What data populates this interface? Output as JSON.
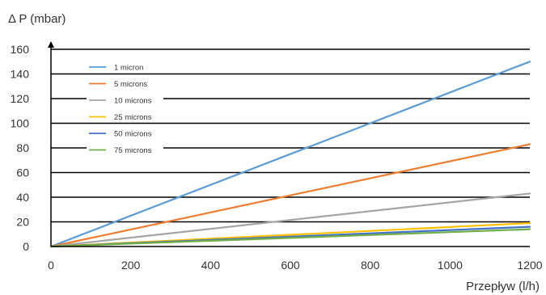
{
  "chart_data": {
    "type": "line",
    "title": "",
    "ylabel": "Δ P (mbar)",
    "xlabel": "Przepływ (l/h)",
    "xlim": [
      0,
      1200
    ],
    "ylim": [
      0,
      160
    ],
    "xticks": [
      "0",
      "200",
      "400",
      "600",
      "800",
      "1000",
      "1200"
    ],
    "yticks": [
      "0",
      "20",
      "40",
      "60",
      "80",
      "100",
      "120",
      "140",
      "160"
    ],
    "grid": "horizontal",
    "legend_position": "top-left",
    "series": [
      {
        "name": "1 micron",
        "color": "#5b9bd5",
        "x": [
          0,
          1200
        ],
        "y": [
          0,
          150
        ]
      },
      {
        "name": "5 microns",
        "color": "#ed7d31",
        "x": [
          0,
          1200
        ],
        "y": [
          0,
          83
        ]
      },
      {
        "name": "10 microns",
        "color": "#a5a5a5",
        "x": [
          0,
          1200
        ],
        "y": [
          0,
          43
        ]
      },
      {
        "name": "25 microns",
        "color": "#ffc000",
        "x": [
          0,
          1200
        ],
        "y": [
          0,
          19
        ]
      },
      {
        "name": "50 microns",
        "color": "#4472c4",
        "x": [
          0,
          1200
        ],
        "y": [
          0,
          16
        ]
      },
      {
        "name": "75 microns",
        "color": "#70ad47",
        "x": [
          0,
          1200
        ],
        "y": [
          0,
          14
        ]
      }
    ]
  }
}
